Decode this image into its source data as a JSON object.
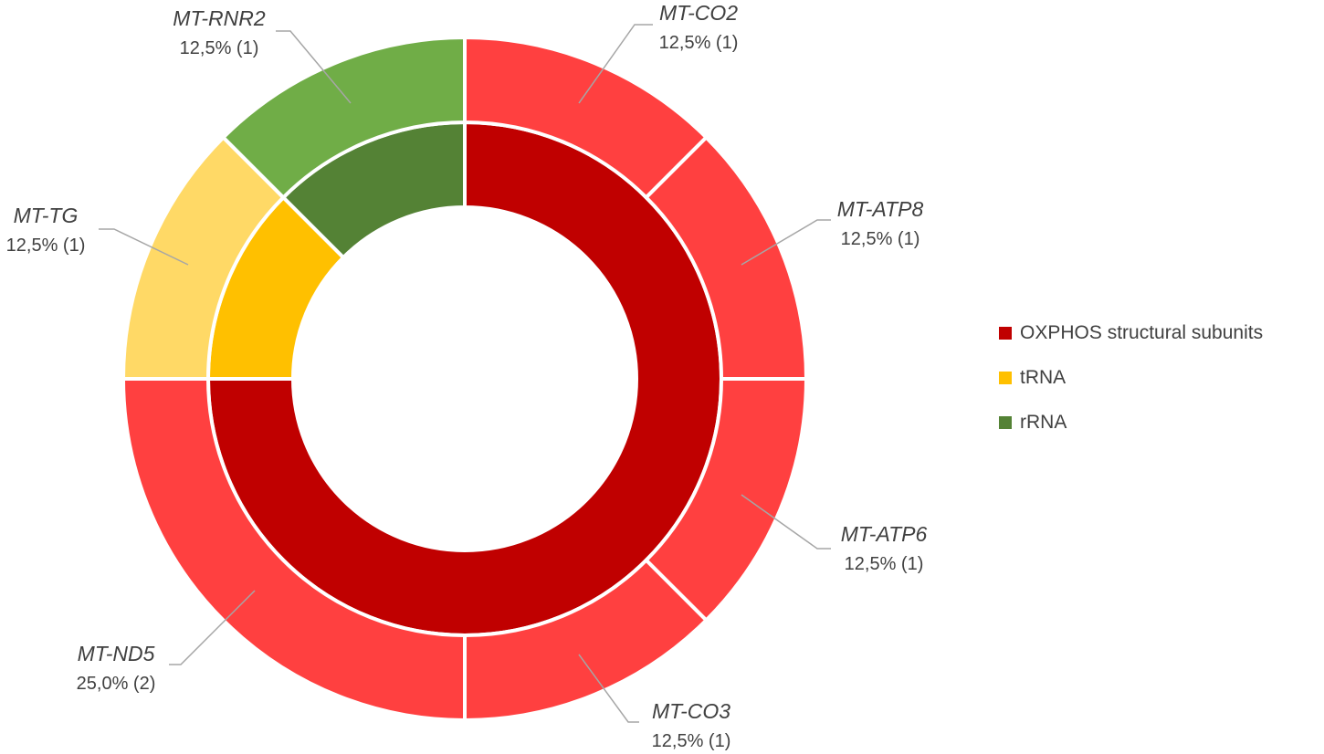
{
  "chart_data": {
    "type": "pie",
    "subtype": "nested-donut",
    "title": "",
    "legend_position": "right",
    "inner_ring": {
      "categories": [
        "OXPHOS structural subunits",
        "tRNA",
        "rRNA"
      ],
      "values": [
        6,
        1,
        1
      ],
      "colors": [
        "#c00000",
        "#ffc000",
        "#548235"
      ]
    },
    "outer_ring": {
      "slices": [
        {
          "name": "MT-CO2",
          "label": "12,5% (1)",
          "value": 1,
          "group": "OXPHOS structural subunits",
          "color": "#ff4040"
        },
        {
          "name": "MT-ATP8",
          "label": "12,5% (1)",
          "value": 1,
          "group": "OXPHOS structural subunits",
          "color": "#ff4040"
        },
        {
          "name": "MT-ATP6",
          "label": "12,5% (1)",
          "value": 1,
          "group": "OXPHOS structural subunits",
          "color": "#ff4040"
        },
        {
          "name": "MT-CO3",
          "label": "12,5% (1)",
          "value": 1,
          "group": "OXPHOS structural subunits",
          "color": "#ff4040"
        },
        {
          "name": "MT-ND5",
          "label": "25,0% (2)",
          "value": 2,
          "group": "OXPHOS structural subunits",
          "color": "#ff4040"
        },
        {
          "name": "MT-TG",
          "label": "12,5% (1)",
          "value": 1,
          "group": "tRNA",
          "color": "#ffd966"
        },
        {
          "name": "MT-RNR2",
          "label": "12,5% (1)",
          "value": 1,
          "group": "rRNA",
          "color": "#70ad47"
        }
      ]
    },
    "legend": [
      {
        "label": "OXPHOS structural subunits",
        "color": "#c00000"
      },
      {
        "label": "tRNA",
        "color": "#ffc000"
      },
      {
        "label": "rRNA",
        "color": "#548235"
      }
    ]
  }
}
